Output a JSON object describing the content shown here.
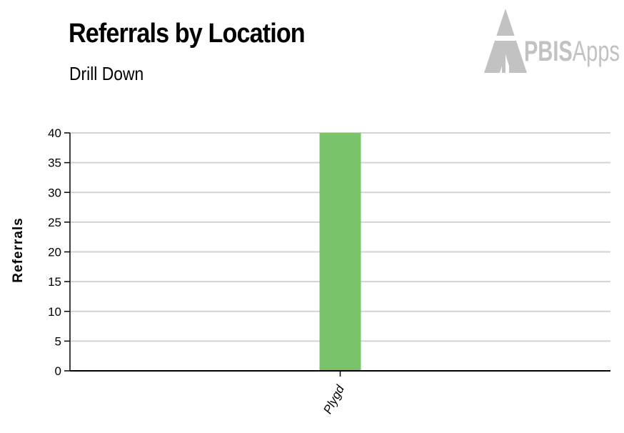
{
  "header": {
    "title": "Referrals by Location",
    "subtitle": "Drill Down"
  },
  "logo": {
    "text_bold": "PBIS",
    "text_light": "Apps",
    "icon": "pbis-building-icon",
    "color": "#c2c2c2"
  },
  "colors": {
    "bar": "#79c36a",
    "grid": "#d3d3d3",
    "axis": "#000000"
  },
  "chart_data": {
    "type": "bar",
    "title": "Referrals by Location",
    "subtitle": "Drill Down",
    "xlabel": "",
    "ylabel": "Referrals",
    "categories": [
      "Plygd"
    ],
    "values": [
      40
    ],
    "ylim": [
      0,
      40
    ],
    "yticks": [
      0,
      5,
      10,
      15,
      20,
      25,
      30,
      35,
      40
    ],
    "grid": true,
    "legend": "none"
  }
}
